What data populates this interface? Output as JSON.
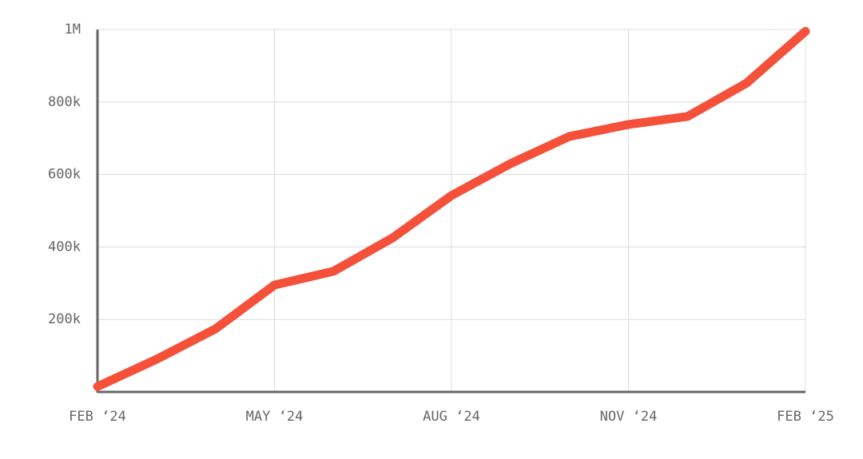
{
  "chart_data": {
    "type": "line",
    "categories": [
      "FEB ‘24",
      null,
      null,
      "MAY ‘24",
      null,
      null,
      "AUG ‘24",
      null,
      null,
      "NOV ‘24",
      null,
      null,
      "FEB ‘25"
    ],
    "values": [
      15000,
      90000,
      174000,
      295000,
      333000,
      425000,
      542000,
      630000,
      705000,
      738000,
      760000,
      852000,
      995000
    ],
    "color": "#f4503a",
    "ylim": [
      0,
      1000000
    ],
    "yticks": [
      {
        "value": 200000,
        "label": "200k"
      },
      {
        "value": 400000,
        "label": "400k"
      },
      {
        "value": 600000,
        "label": "600k"
      },
      {
        "value": 800000,
        "label": "800k"
      },
      {
        "value": 1000000,
        "label": "1M"
      }
    ],
    "grid": true
  }
}
